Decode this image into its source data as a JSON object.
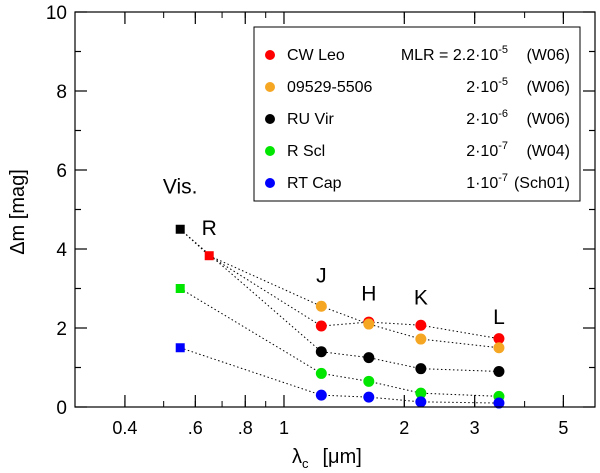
{
  "chart_data": {
    "type": "scatter",
    "title": "",
    "xlabel": "λc [μm]",
    "xlabel_main": "λ",
    "xlabel_sub": "c",
    "xlabel_unit": "[μm]",
    "ylabel": "Δm [mag]",
    "x_scale": "log",
    "xlim": [
      0.3,
      6.0
    ],
    "ylim": [
      0,
      10
    ],
    "x_ticks": [
      {
        "value": 0.4,
        "label": "0.4"
      },
      {
        "value": 0.6,
        "label": ".6"
      },
      {
        "value": 0.8,
        "label": ".8"
      },
      {
        "value": 1,
        "label": "1"
      },
      {
        "value": 2,
        "label": "2"
      },
      {
        "value": 3,
        "label": "3"
      },
      {
        "value": 5,
        "label": "5"
      }
    ],
    "y_ticks": [
      {
        "value": 0,
        "label": "0"
      },
      {
        "value": 2,
        "label": "2"
      },
      {
        "value": 4,
        "label": "4"
      },
      {
        "value": 6,
        "label": "6"
      },
      {
        "value": 8,
        "label": "8"
      },
      {
        "value": 10,
        "label": "10"
      }
    ],
    "band_labels": [
      {
        "text": "Vis.",
        "x": 0.55,
        "y": 5.4
      },
      {
        "text": "R",
        "x": 0.65,
        "y": 4.35
      },
      {
        "text": "J",
        "x": 1.24,
        "y": 3.15
      },
      {
        "text": "H",
        "x": 1.63,
        "y": 2.7
      },
      {
        "text": "K",
        "x": 2.2,
        "y": 2.6
      },
      {
        "text": "L",
        "x": 3.45,
        "y": 2.1
      }
    ],
    "series": [
      {
        "name": "CW Leo",
        "mlr_text": "MLR = 2.2·10",
        "mlr_exp": "-5",
        "ref": "(W06)",
        "color": "#ff0000",
        "marker": "circle",
        "points": [
          {
            "x": 1.24,
            "y": 2.05
          },
          {
            "x": 1.63,
            "y": 2.15
          },
          {
            "x": 2.2,
            "y": 2.07
          },
          {
            "x": 3.45,
            "y": 1.73
          }
        ]
      },
      {
        "name": "09529-5506",
        "mlr_text": "2·10",
        "mlr_exp": "-5",
        "ref": "(W06)",
        "color": "#f5a623",
        "marker": "circle",
        "points": [
          {
            "x": 1.24,
            "y": 2.55
          },
          {
            "x": 1.63,
            "y": 2.1
          },
          {
            "x": 2.2,
            "y": 1.72
          },
          {
            "x": 3.45,
            "y": 1.5
          }
        ]
      },
      {
        "name": "RU Vir",
        "mlr_text": "2·10",
        "mlr_exp": "-6",
        "ref": "(W06)",
        "color": "#000000",
        "marker": "circle",
        "points": [
          {
            "x": 0.55,
            "y": 4.5
          },
          {
            "x": 1.24,
            "y": 1.4
          },
          {
            "x": 1.63,
            "y": 1.25
          },
          {
            "x": 2.2,
            "y": 0.97
          },
          {
            "x": 3.45,
            "y": 0.9
          }
        ]
      },
      {
        "name": "R Scl",
        "mlr_text": "2·10",
        "mlr_exp": "-7",
        "ref": "(W04)",
        "color": "#00e600",
        "marker": "circle",
        "points": [
          {
            "x": 0.55,
            "y": 3.0
          },
          {
            "x": 1.24,
            "y": 0.85
          },
          {
            "x": 1.63,
            "y": 0.65
          },
          {
            "x": 2.2,
            "y": 0.35
          },
          {
            "x": 3.45,
            "y": 0.27
          }
        ]
      },
      {
        "name": "RT Cap",
        "mlr_text": "1·10",
        "mlr_exp": "-7",
        "ref": "(Sch01)",
        "color": "#0000ff",
        "marker": "circle",
        "points": [
          {
            "x": 0.55,
            "y": 1.5
          },
          {
            "x": 1.24,
            "y": 0.3
          },
          {
            "x": 1.63,
            "y": 0.25
          },
          {
            "x": 2.2,
            "y": 0.13
          },
          {
            "x": 3.45,
            "y": 0.1
          }
        ]
      }
    ],
    "extra_points": [
      {
        "name": "R-band point",
        "x": 0.65,
        "y": 3.83,
        "color": "#ff0000",
        "marker": "square",
        "connects_to": "CW Leo"
      }
    ],
    "legend_position": "top-right"
  }
}
